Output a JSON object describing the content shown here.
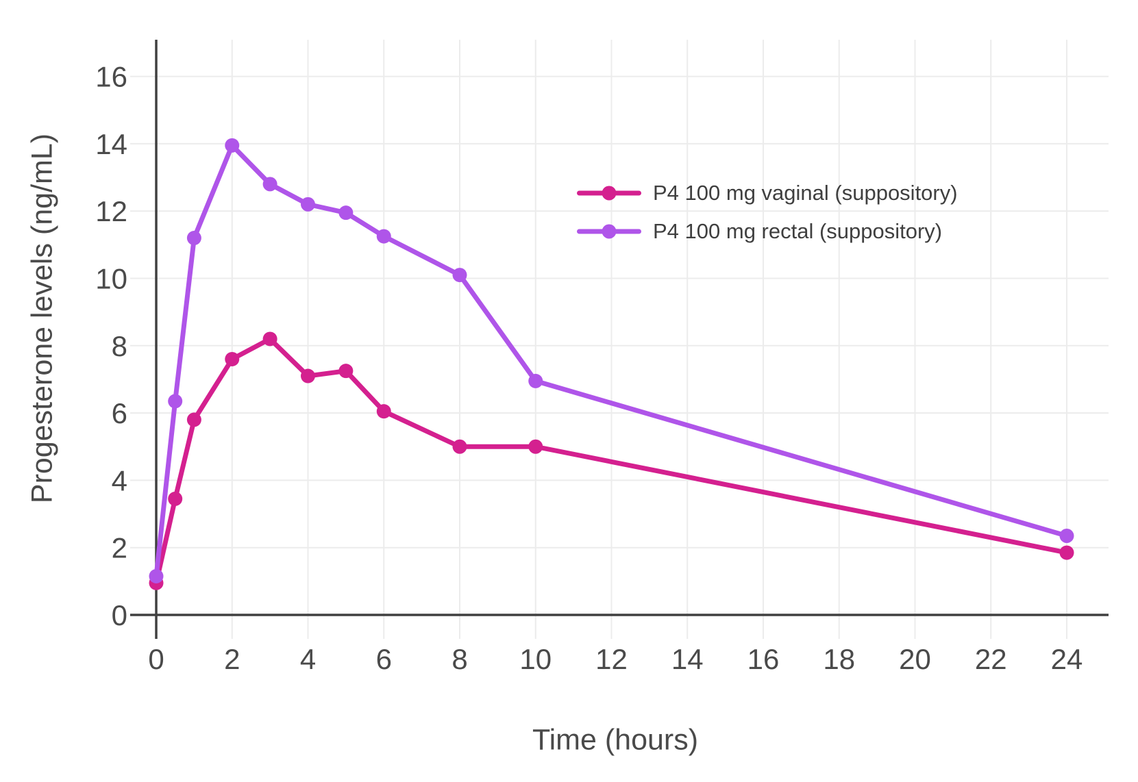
{
  "chart_data": {
    "type": "line",
    "title": "",
    "xlabel": "Time (hours)",
    "ylabel": "Progesterone levels (ng/mL)",
    "x": [
      0,
      0.5,
      1,
      2,
      3,
      4,
      5,
      6,
      8,
      10,
      24
    ],
    "series": [
      {
        "name": "P4 100 mg vaginal (suppository)",
        "color": "#D4208F",
        "values": [
          0.95,
          3.45,
          5.8,
          7.6,
          8.2,
          7.1,
          7.25,
          6.05,
          5.0,
          5.0,
          1.85
        ]
      },
      {
        "name": "P4 100 mg rectal (suppository)",
        "color": "#AF55E9",
        "values": [
          1.15,
          6.35,
          11.2,
          13.95,
          12.8,
          12.2,
          11.95,
          11.25,
          10.1,
          6.95,
          2.35
        ]
      }
    ],
    "xticks": [
      0,
      2,
      4,
      6,
      8,
      10,
      12,
      14,
      16,
      18,
      20,
      22,
      24
    ],
    "yticks": [
      0,
      2,
      4,
      6,
      8,
      10,
      12,
      14,
      16
    ],
    "xlim": [
      0,
      25.1
    ],
    "ylim": [
      0,
      17.1
    ],
    "grid": true,
    "legend_position": "inside-top-right"
  },
  "style": {
    "background": "#FFFFFF",
    "grid_color": "#ECECEC",
    "axis_color": "#404040",
    "tick_label_color": "#4A4A4A",
    "axis_title_color": "#4A4A4A",
    "legend_text_color": "#3F3F3F"
  }
}
